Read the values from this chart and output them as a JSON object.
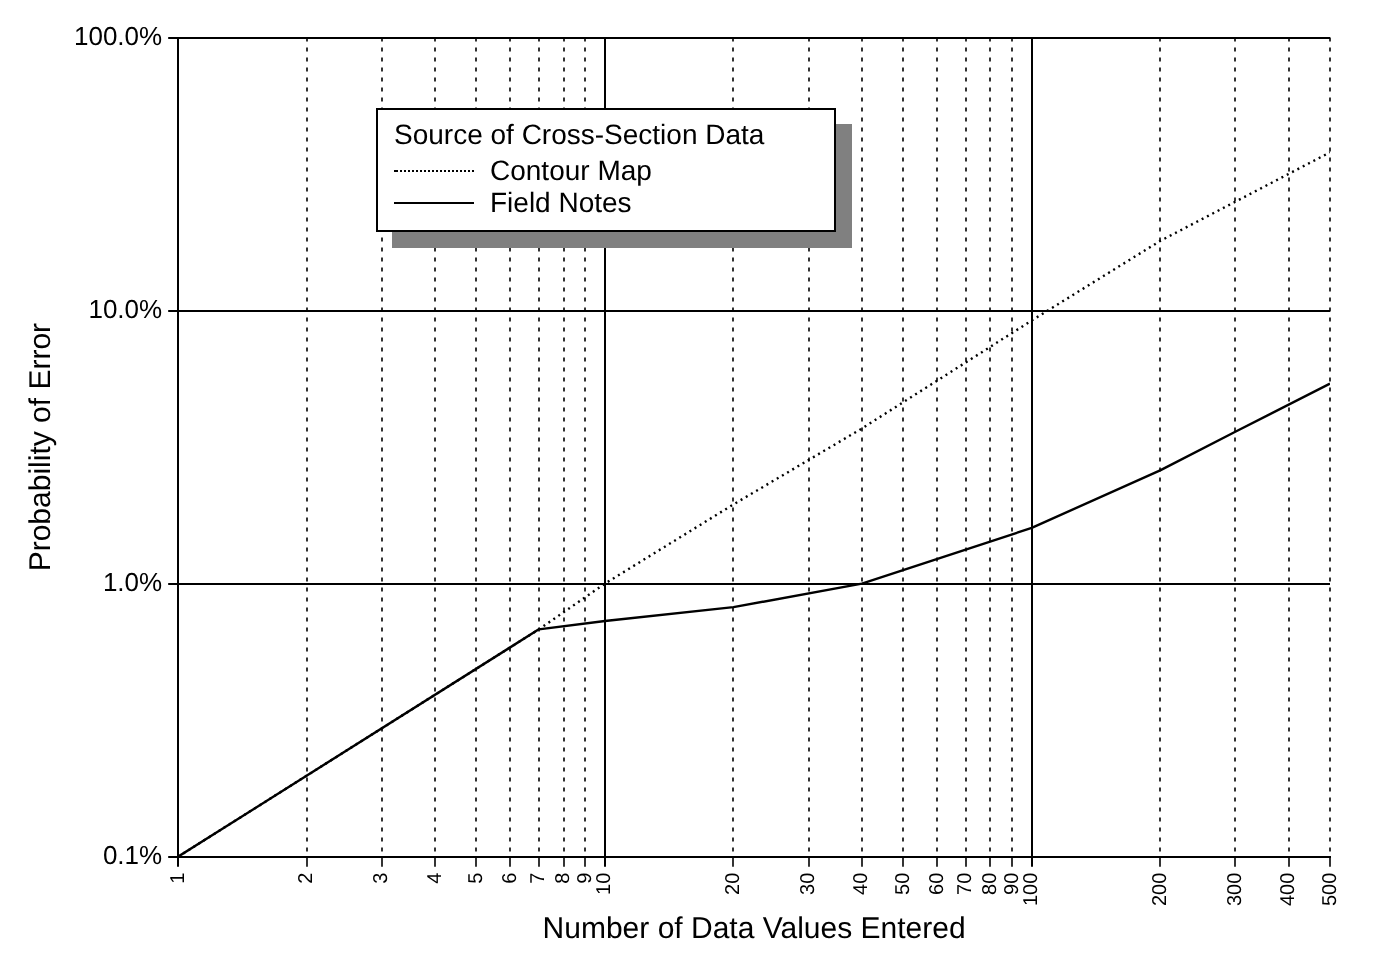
{
  "chart_data": {
    "type": "line",
    "xlabel": "Number of Data Values Entered",
    "ylabel": "Probability of Error",
    "legend_title": "Source of Cross-Section Data",
    "legend": "top left",
    "log": "xy",
    "grid": true,
    "marker": "none",
    "xlim": [
      1,
      500
    ],
    "ylim": [
      0.1,
      100
    ],
    "xticks": [
      1,
      2,
      3,
      4,
      5,
      6,
      7,
      8,
      9,
      10,
      20,
      30,
      40,
      50,
      60,
      70,
      80,
      90,
      100,
      200,
      300,
      400,
      500
    ],
    "yticks": [
      {
        "value": 0.1,
        "label": "0.1%"
      },
      {
        "value": 1,
        "label": "1.0%"
      },
      {
        "value": 10,
        "label": "10.0%"
      },
      {
        "value": 100,
        "label": "100.0%"
      }
    ],
    "series": [
      {
        "name": "Contour Map",
        "color": "#000000",
        "line_style": "dotted",
        "x": [
          1,
          7,
          10,
          20,
          40,
          100,
          200,
          500
        ],
        "values": [
          0.1,
          0.68,
          1.0,
          1.95,
          3.7,
          9.2,
          18,
          38
        ]
      },
      {
        "name": "Field Notes",
        "color": "#000000",
        "line_style": "solid",
        "x": [
          1,
          7,
          10,
          20,
          40,
          100,
          200,
          300,
          500
        ],
        "values": [
          0.1,
          0.68,
          0.73,
          0.82,
          1.0,
          1.6,
          2.6,
          3.6,
          5.4
        ]
      }
    ]
  }
}
